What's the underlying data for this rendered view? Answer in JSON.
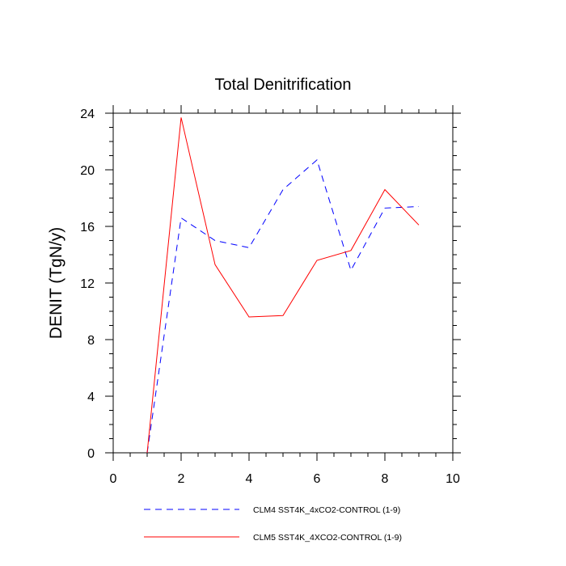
{
  "chart_data": {
    "type": "line",
    "title": "Total Denitrification",
    "xlabel": "",
    "ylabel": "DENIT  (TgN/y)",
    "xlim": [
      0,
      10
    ],
    "ylim": [
      0,
      24
    ],
    "xticks": [
      0,
      2,
      4,
      6,
      8,
      10
    ],
    "yticks": [
      0,
      4,
      8,
      12,
      16,
      20,
      24
    ],
    "xtick_labels": [
      "0",
      "2",
      "4",
      "6",
      "8",
      "10"
    ],
    "ytick_labels": [
      "0",
      "4",
      "8",
      "12",
      "16",
      "20",
      "24"
    ],
    "grid": false,
    "legend_position": "bottom",
    "series": [
      {
        "name": "CLM4 SST4K_4xCO2-CONTROL (1-9)",
        "color": "#0000ff",
        "style": "dashed",
        "x": [
          1,
          2,
          3,
          4,
          5,
          6,
          7,
          8,
          9
        ],
        "y": [
          0,
          16.6,
          15.0,
          14.5,
          18.6,
          20.7,
          12.9,
          17.3,
          17.4
        ]
      },
      {
        "name": "CLM5 SST4K_4XCO2-CONTROL (1-9)",
        "color": "#ff0000",
        "style": "solid",
        "x": [
          1,
          2,
          3,
          4,
          5,
          6,
          7,
          8,
          9
        ],
        "y": [
          0,
          23.7,
          13.3,
          9.6,
          9.7,
          13.6,
          14.3,
          18.6,
          16.1
        ]
      }
    ]
  }
}
